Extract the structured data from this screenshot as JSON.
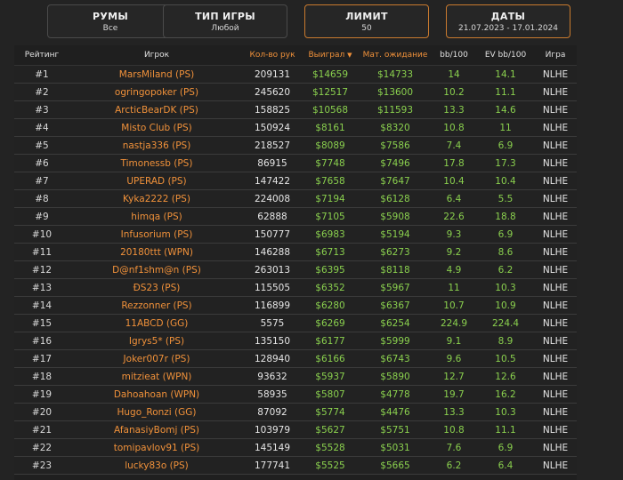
{
  "filters": [
    {
      "title": "РУМЫ",
      "value": "Все"
    },
    {
      "title": "ТИП ИГРЫ",
      "value": "Любой"
    },
    {
      "title": "ЛИМИТ",
      "value": "50"
    },
    {
      "title": "ДАТЫ",
      "value": "21.07.2023 - 17.01.2024"
    }
  ],
  "table": {
    "headers": {
      "rank": "Рейтинг",
      "player": "Игрок",
      "hands": "Кол-во рук",
      "won": "Выиграл",
      "won_sort": "▼",
      "ev": "Мат. ожидание",
      "bb100": "bb/100",
      "evbb100": "EV bb/100",
      "game": "Игра"
    },
    "rows": [
      {
        "rank": "#1",
        "player": "MarsMiland (PS)",
        "hands": "209131",
        "won": "$14659",
        "ev": "$14733",
        "bb": "14",
        "evbb": "14.1",
        "game": "NLHE"
      },
      {
        "rank": "#2",
        "player": "ogringopoker (PS)",
        "hands": "245620",
        "won": "$12517",
        "ev": "$13600",
        "bb": "10.2",
        "evbb": "11.1",
        "game": "NLHE"
      },
      {
        "rank": "#3",
        "player": "ArcticBearDK (PS)",
        "hands": "158825",
        "won": "$10568",
        "ev": "$11593",
        "bb": "13.3",
        "evbb": "14.6",
        "game": "NLHE"
      },
      {
        "rank": "#4",
        "player": "Misto Club (PS)",
        "hands": "150924",
        "won": "$8161",
        "ev": "$8320",
        "bb": "10.8",
        "evbb": "11",
        "game": "NLHE"
      },
      {
        "rank": "#5",
        "player": "nastja336 (PS)",
        "hands": "218527",
        "won": "$8089",
        "ev": "$7586",
        "bb": "7.4",
        "evbb": "6.9",
        "game": "NLHE"
      },
      {
        "rank": "#6",
        "player": "Timonessb (PS)",
        "hands": "86915",
        "won": "$7748",
        "ev": "$7496",
        "bb": "17.8",
        "evbb": "17.3",
        "game": "NLHE"
      },
      {
        "rank": "#7",
        "player": "UPERAD (PS)",
        "hands": "147422",
        "won": "$7658",
        "ev": "$7647",
        "bb": "10.4",
        "evbb": "10.4",
        "game": "NLHE"
      },
      {
        "rank": "#8",
        "player": "Kyka2222 (PS)",
        "hands": "224008",
        "won": "$7194",
        "ev": "$6128",
        "bb": "6.4",
        "evbb": "5.5",
        "game": "NLHE"
      },
      {
        "rank": "#9",
        "player": "himqa (PS)",
        "hands": "62888",
        "won": "$7105",
        "ev": "$5908",
        "bb": "22.6",
        "evbb": "18.8",
        "game": "NLHE"
      },
      {
        "rank": "#10",
        "player": "Infusorium (PS)",
        "hands": "150777",
        "won": "$6983",
        "ev": "$5194",
        "bb": "9.3",
        "evbb": "6.9",
        "game": "NLHE"
      },
      {
        "rank": "#11",
        "player": "20180ttt (WPN)",
        "hands": "146288",
        "won": "$6713",
        "ev": "$6273",
        "bb": "9.2",
        "evbb": "8.6",
        "game": "NLHE"
      },
      {
        "rank": "#12",
        "player": "D@nf1shm@n (PS)",
        "hands": "263013",
        "won": "$6395",
        "ev": "$8118",
        "bb": "4.9",
        "evbb": "6.2",
        "game": "NLHE"
      },
      {
        "rank": "#13",
        "player": "ÐS23 (PS)",
        "hands": "115505",
        "won": "$6352",
        "ev": "$5967",
        "bb": "11",
        "evbb": "10.3",
        "game": "NLHE"
      },
      {
        "rank": "#14",
        "player": "Rezzonner (PS)",
        "hands": "116899",
        "won": "$6280",
        "ev": "$6367",
        "bb": "10.7",
        "evbb": "10.9",
        "game": "NLHE"
      },
      {
        "rank": "#15",
        "player": "11ABCD (GG)",
        "hands": "5575",
        "won": "$6269",
        "ev": "$6254",
        "bb": "224.9",
        "evbb": "224.4",
        "game": "NLHE"
      },
      {
        "rank": "#16",
        "player": "Igrys5* (PS)",
        "hands": "135150",
        "won": "$6177",
        "ev": "$5999",
        "bb": "9.1",
        "evbb": "8.9",
        "game": "NLHE"
      },
      {
        "rank": "#17",
        "player": "Joker007r (PS)",
        "hands": "128940",
        "won": "$6166",
        "ev": "$6743",
        "bb": "9.6",
        "evbb": "10.5",
        "game": "NLHE"
      },
      {
        "rank": "#18",
        "player": "mitzieat (WPN)",
        "hands": "93632",
        "won": "$5937",
        "ev": "$5890",
        "bb": "12.7",
        "evbb": "12.6",
        "game": "NLHE"
      },
      {
        "rank": "#19",
        "player": "Dahoahoan (WPN)",
        "hands": "58935",
        "won": "$5807",
        "ev": "$4778",
        "bb": "19.7",
        "evbb": "16.2",
        "game": "NLHE"
      },
      {
        "rank": "#20",
        "player": "Hugo_Ronzi (GG)",
        "hands": "87092",
        "won": "$5774",
        "ev": "$4476",
        "bb": "13.3",
        "evbb": "10.3",
        "game": "NLHE"
      },
      {
        "rank": "#21",
        "player": "AfanasiyBomj (PS)",
        "hands": "103979",
        "won": "$5627",
        "ev": "$5751",
        "bb": "10.8",
        "evbb": "11.1",
        "game": "NLHE"
      },
      {
        "rank": "#22",
        "player": "tomipavlov91 (PS)",
        "hands": "145149",
        "won": "$5528",
        "ev": "$5031",
        "bb": "7.6",
        "evbb": "6.9",
        "game": "NLHE"
      },
      {
        "rank": "#23",
        "player": "lucky83o (PS)",
        "hands": "177741",
        "won": "$5525",
        "ev": "$5665",
        "bb": "6.2",
        "evbb": "6.4",
        "game": "NLHE"
      }
    ]
  }
}
